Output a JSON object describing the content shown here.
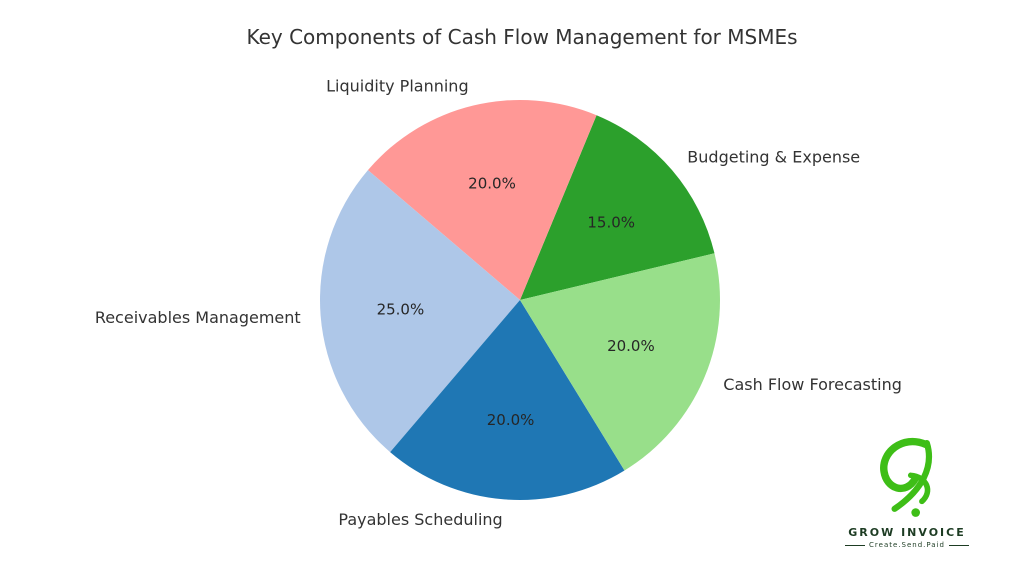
{
  "chart_data": {
    "type": "pie",
    "title": "Key Components of Cash Flow Management for MSMEs",
    "legend": "none",
    "grid": false,
    "start_angle_deg": 13.5,
    "direction": "counterclockwise",
    "pct_distance": 0.6,
    "label_distance": 1.1,
    "slices": [
      {
        "label": "Budgeting & Expense",
        "value": 15.0,
        "pct_label": "15.0%",
        "color": "#2ca02c"
      },
      {
        "label": "Liquidity Planning",
        "value": 20.0,
        "pct_label": "20.0%",
        "color": "#ff9896"
      },
      {
        "label": "Receivables Management",
        "value": 25.0,
        "pct_label": "25.0%",
        "color": "#aec7e8"
      },
      {
        "label": "Payables Scheduling",
        "value": 20.0,
        "pct_label": "20.0%",
        "color": "#1f77b4"
      },
      {
        "label": "Cash Flow Forecasting",
        "value": 20.0,
        "pct_label": "20.0%",
        "color": "#98df8a"
      }
    ]
  },
  "watermark": {
    "brand": "GROW INVOICE",
    "tagline": "Create.Send.Paid",
    "logo_icon": "grow-invoice-g-glyph"
  },
  "theme": {
    "background": "#ffffff",
    "title_color": "#333333",
    "label_color": "#333333",
    "pct_color": "#262626",
    "logo_green": "#3ebe17",
    "logo_text_color": "#1d3c23"
  }
}
